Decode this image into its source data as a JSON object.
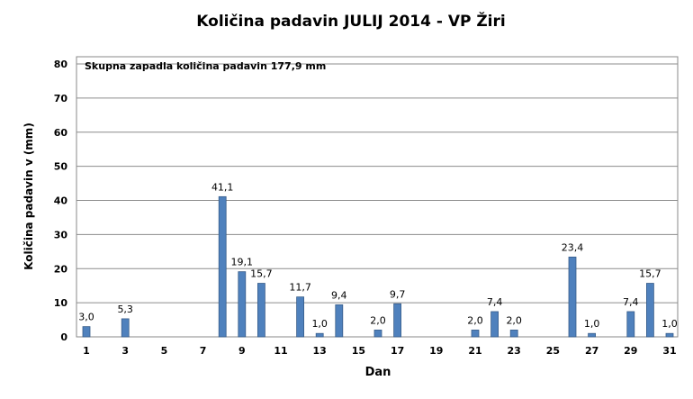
{
  "chart_data": {
    "type": "bar",
    "title": "Količina padavin JULIJ 2014 - VP Žiri",
    "annotation": "Skupna zapadla količina padavin 177,9 mm",
    "xlabel": "Dan",
    "ylabel": "Količina padavin v  (mm)",
    "ylim": [
      0,
      80
    ],
    "yticks": [
      "0",
      "10",
      "20",
      "30",
      "40",
      "50",
      "60",
      "70",
      "80"
    ],
    "xticks": [
      "1",
      "3",
      "5",
      "7",
      "9",
      "11",
      "13",
      "15",
      "17",
      "19",
      "21",
      "23",
      "25",
      "27",
      "29",
      "31"
    ],
    "xlim": [
      1,
      31
    ],
    "grid": true,
    "bar_color": "#4F81BD",
    "points": [
      {
        "day": 1,
        "value": 3.0,
        "label": "3,0"
      },
      {
        "day": 3,
        "value": 5.3,
        "label": "5,3"
      },
      {
        "day": 8,
        "value": 41.1,
        "label": "41,1"
      },
      {
        "day": 9,
        "value": 19.1,
        "label": "19,1"
      },
      {
        "day": 10,
        "value": 15.7,
        "label": "15,7"
      },
      {
        "day": 12,
        "value": 11.7,
        "label": "11,7"
      },
      {
        "day": 13,
        "value": 1.0,
        "label": "1,0"
      },
      {
        "day": 14,
        "value": 9.4,
        "label": "9,4"
      },
      {
        "day": 16,
        "value": 2.0,
        "label": "2,0"
      },
      {
        "day": 17,
        "value": 9.7,
        "label": "9,7"
      },
      {
        "day": 21,
        "value": 2.0,
        "label": "2,0"
      },
      {
        "day": 22,
        "value": 7.4,
        "label": "7,4"
      },
      {
        "day": 23,
        "value": 2.0,
        "label": "2,0"
      },
      {
        "day": 26,
        "value": 23.4,
        "label": "23,4"
      },
      {
        "day": 27,
        "value": 1.0,
        "label": "1,0"
      },
      {
        "day": 29,
        "value": 7.4,
        "label": "7,4"
      },
      {
        "day": 30,
        "value": 15.7,
        "label": "15,7"
      },
      {
        "day": 31,
        "value": 1.0,
        "label": "1,0"
      }
    ]
  }
}
